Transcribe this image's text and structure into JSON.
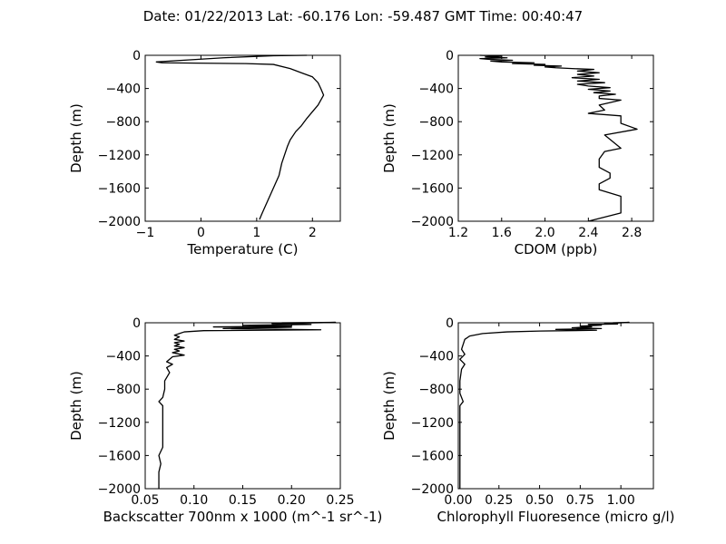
{
  "title": "Date: 01/22/2013  Lat:  -60.176 Lon:  -59.487  GMT Time: 00:40:47",
  "chart_data": [
    {
      "type": "line",
      "xlabel": "Temperature (C)",
      "ylabel": "Depth (m)",
      "xlim": [
        -1,
        2.5
      ],
      "ylim": [
        -2000,
        0
      ],
      "xticks": [
        -1,
        0,
        1,
        2
      ],
      "xtick_labels": [
        "−1",
        "0",
        "1",
        "2"
      ],
      "yticks": [
        0,
        -400,
        -800,
        -1200,
        -1600,
        -2000
      ],
      "ytick_labels": [
        "0",
        "−400",
        "−800",
        "−1200",
        "−1600",
        "−2000"
      ],
      "grid": false,
      "points": [
        [
          1.9,
          0
        ],
        [
          1.3,
          -5
        ],
        [
          0.4,
          -30
        ],
        [
          -0.2,
          -55
        ],
        [
          -0.8,
          -80
        ],
        [
          -0.7,
          -90
        ],
        [
          0.8,
          -100
        ],
        [
          1.3,
          -110
        ],
        [
          1.6,
          -160
        ],
        [
          1.8,
          -210
        ],
        [
          2.0,
          -260
        ],
        [
          2.1,
          -330
        ],
        [
          2.15,
          -400
        ],
        [
          2.2,
          -480
        ],
        [
          2.1,
          -600
        ],
        [
          2.0,
          -680
        ],
        [
          1.9,
          -760
        ],
        [
          1.8,
          -850
        ],
        [
          1.7,
          -920
        ],
        [
          1.6,
          -1020
        ],
        [
          1.55,
          -1100
        ],
        [
          1.5,
          -1200
        ],
        [
          1.45,
          -1300
        ],
        [
          1.4,
          -1450
        ],
        [
          1.3,
          -1600
        ],
        [
          1.2,
          -1750
        ],
        [
          1.1,
          -1900
        ],
        [
          1.05,
          -1980
        ]
      ]
    },
    {
      "type": "line",
      "xlabel": "CDOM (ppb)",
      "ylabel": "Depth (m)",
      "xlim": [
        1.2,
        3.0
      ],
      "ylim": [
        -2000,
        0
      ],
      "xticks": [
        1.2,
        1.6,
        2.0,
        2.4,
        2.8
      ],
      "xtick_labels": [
        "1.2",
        "1.6",
        "2.0",
        "2.4",
        "2.8"
      ],
      "yticks": [
        0,
        -400,
        -800,
        -1200,
        -1600,
        -2000
      ],
      "ytick_labels": [
        "0",
        "−400",
        "−800",
        "−1200",
        "−1600",
        "−2000"
      ],
      "grid": false,
      "points": [
        [
          1.4,
          0
        ],
        [
          1.6,
          -10
        ],
        [
          1.45,
          -20
        ],
        [
          1.65,
          -30
        ],
        [
          1.4,
          -40
        ],
        [
          1.5,
          -50
        ],
        [
          1.7,
          -60
        ],
        [
          1.5,
          -70
        ],
        [
          1.6,
          -80
        ],
        [
          1.9,
          -90
        ],
        [
          1.7,
          -100
        ],
        [
          2.0,
          -110
        ],
        [
          1.9,
          -120
        ],
        [
          2.15,
          -130
        ],
        [
          2.0,
          -140
        ],
        [
          2.1,
          -150
        ],
        [
          2.25,
          -160
        ],
        [
          2.45,
          -170
        ],
        [
          2.3,
          -190
        ],
        [
          2.5,
          -210
        ],
        [
          2.3,
          -230
        ],
        [
          2.45,
          -250
        ],
        [
          2.25,
          -270
        ],
        [
          2.5,
          -290
        ],
        [
          2.3,
          -310
        ],
        [
          2.55,
          -330
        ],
        [
          2.3,
          -350
        ],
        [
          2.4,
          -370
        ],
        [
          2.6,
          -390
        ],
        [
          2.4,
          -410
        ],
        [
          2.6,
          -430
        ],
        [
          2.45,
          -450
        ],
        [
          2.65,
          -470
        ],
        [
          2.5,
          -490
        ],
        [
          2.5,
          -520
        ],
        [
          2.7,
          -540
        ],
        [
          2.5,
          -600
        ],
        [
          2.55,
          -660
        ],
        [
          2.4,
          -700
        ],
        [
          2.7,
          -730
        ],
        [
          2.7,
          -820
        ],
        [
          2.85,
          -890
        ],
        [
          2.55,
          -960
        ],
        [
          2.7,
          -1120
        ],
        [
          2.55,
          -1160
        ],
        [
          2.5,
          -1250
        ],
        [
          2.5,
          -1350
        ],
        [
          2.6,
          -1420
        ],
        [
          2.6,
          -1480
        ],
        [
          2.5,
          -1550
        ],
        [
          2.5,
          -1620
        ],
        [
          2.7,
          -1700
        ],
        [
          2.7,
          -1900
        ],
        [
          2.4,
          -2000
        ]
      ]
    },
    {
      "type": "line",
      "xlabel": "Backscatter 700nm x 1000 (m^-1 sr^-1)",
      "ylabel": "Depth (m)",
      "xlim": [
        0.05,
        0.25
      ],
      "ylim": [
        -2000,
        0
      ],
      "xticks": [
        0.05,
        0.1,
        0.15,
        0.2,
        0.25
      ],
      "xtick_labels": [
        "0.05",
        "0.10",
        "0.15",
        "0.20",
        "0.25"
      ],
      "yticks": [
        0,
        -400,
        -800,
        -1200,
        -1600,
        -2000
      ],
      "ytick_labels": [
        "0",
        "−400",
        "−800",
        "−1200",
        "−1600",
        "−2000"
      ],
      "grid": false,
      "points": [
        [
          0.19,
          0
        ],
        [
          0.245,
          5
        ],
        [
          0.18,
          -10
        ],
        [
          0.22,
          -20
        ],
        [
          0.15,
          -30
        ],
        [
          0.2,
          -40
        ],
        [
          0.12,
          -50
        ],
        [
          0.2,
          -55
        ],
        [
          0.13,
          -70
        ],
        [
          0.23,
          -85
        ],
        [
          0.11,
          -95
        ],
        [
          0.09,
          -110
        ],
        [
          0.085,
          -130
        ],
        [
          0.08,
          -150
        ],
        [
          0.085,
          -170
        ],
        [
          0.08,
          -200
        ],
        [
          0.09,
          -220
        ],
        [
          0.08,
          -240
        ],
        [
          0.085,
          -260
        ],
        [
          0.08,
          -280
        ],
        [
          0.09,
          -300
        ],
        [
          0.08,
          -320
        ],
        [
          0.085,
          -340
        ],
        [
          0.078,
          -360
        ],
        [
          0.09,
          -390
        ],
        [
          0.078,
          -410
        ],
        [
          0.075,
          -440
        ],
        [
          0.072,
          -470
        ],
        [
          0.078,
          -500
        ],
        [
          0.072,
          -540
        ],
        [
          0.075,
          -600
        ],
        [
          0.07,
          -700
        ],
        [
          0.07,
          -800
        ],
        [
          0.068,
          -900
        ],
        [
          0.064,
          -950
        ],
        [
          0.068,
          -1000
        ],
        [
          0.068,
          -1100
        ],
        [
          0.068,
          -1300
        ],
        [
          0.068,
          -1500
        ],
        [
          0.064,
          -1600
        ],
        [
          0.066,
          -1700
        ],
        [
          0.064,
          -1800
        ],
        [
          0.064,
          -2000
        ]
      ]
    },
    {
      "type": "line",
      "xlabel": "Chlorophyll Fluoresence (micro g/l)",
      "ylabel": "Depth (m)",
      "xlim": [
        0,
        1.2
      ],
      "ylim": [
        -2000,
        0
      ],
      "xticks": [
        0,
        0.25,
        0.5,
        0.75,
        1.0
      ],
      "xtick_labels": [
        "0.00",
        "0.25",
        "0.50",
        "0.75",
        "1.00"
      ],
      "yticks": [
        0,
        -400,
        -800,
        -1200,
        -1600,
        -2000
      ],
      "ytick_labels": [
        "0",
        "−400",
        "−800",
        "−1200",
        "−1600",
        "−2000"
      ],
      "grid": false,
      "points": [
        [
          0.95,
          0
        ],
        [
          1.05,
          5
        ],
        [
          0.9,
          -10
        ],
        [
          0.98,
          -15
        ],
        [
          0.8,
          -20
        ],
        [
          0.88,
          -30
        ],
        [
          0.75,
          -40
        ],
        [
          0.82,
          -50
        ],
        [
          0.7,
          -60
        ],
        [
          0.88,
          -70
        ],
        [
          0.6,
          -80
        ],
        [
          0.85,
          -90
        ],
        [
          0.5,
          -100
        ],
        [
          0.3,
          -110
        ],
        [
          0.15,
          -130
        ],
        [
          0.07,
          -160
        ],
        [
          0.04,
          -200
        ],
        [
          0.03,
          -260
        ],
        [
          0.02,
          -320
        ],
        [
          0.04,
          -380
        ],
        [
          0.01,
          -440
        ],
        [
          0.04,
          -500
        ],
        [
          0.02,
          -560
        ],
        [
          0.01,
          -700
        ],
        [
          0.01,
          -850
        ],
        [
          0.03,
          -950
        ],
        [
          0.01,
          -1000
        ],
        [
          0.01,
          -1500
        ],
        [
          0.01,
          -2000
        ]
      ]
    }
  ]
}
